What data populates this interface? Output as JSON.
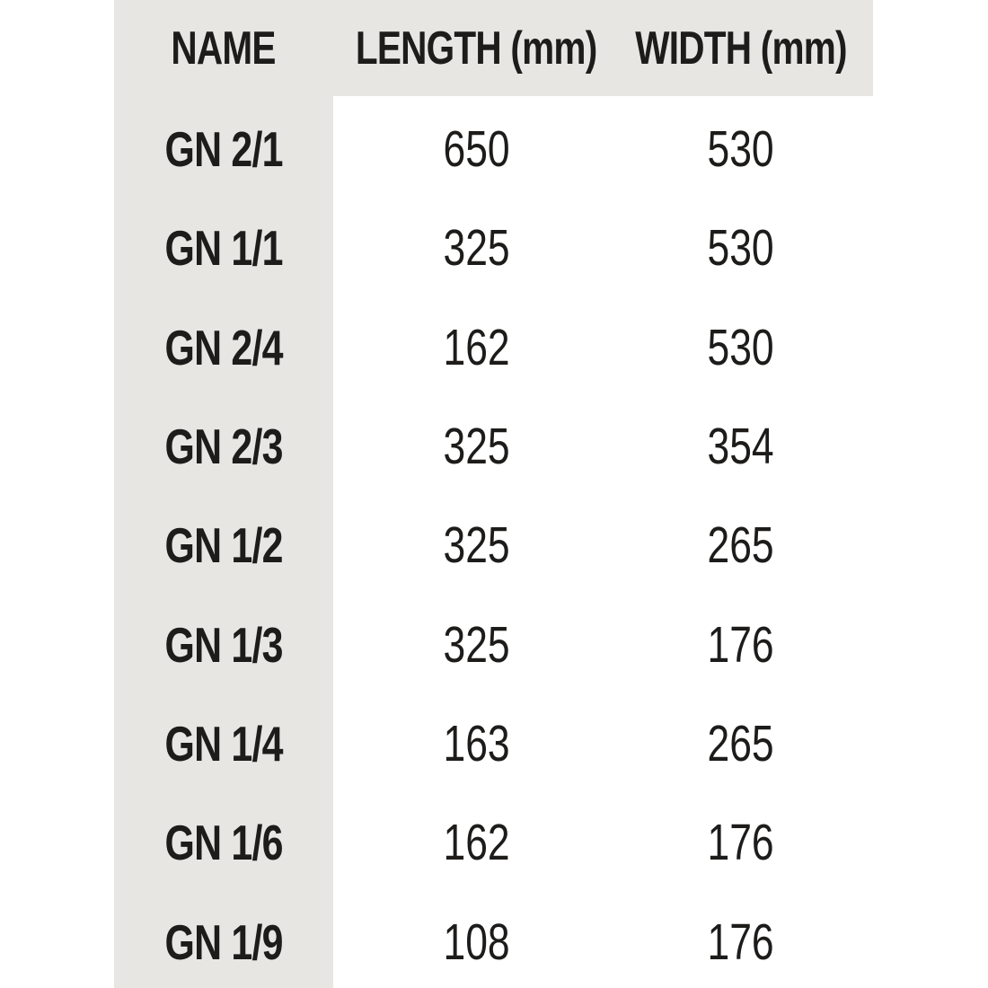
{
  "colors": {
    "band_gray": "#e7e6e3",
    "text": "#1d1c1a",
    "page_bg": "#ffffff"
  },
  "header": {
    "name": "NAME",
    "length": "LENGTH (mm)",
    "width": "WIDTH (mm)"
  },
  "chart_data": {
    "type": "table",
    "title": "",
    "columns": [
      "NAME",
      "LENGTH (mm)",
      "WIDTH (mm)"
    ],
    "rows": [
      {
        "name": "GN 2/1",
        "length": "650",
        "width": "530"
      },
      {
        "name": "GN 1/1",
        "length": "325",
        "width": "530"
      },
      {
        "name": "GN 2/4",
        "length": "162",
        "width": "530"
      },
      {
        "name": "GN 2/3",
        "length": "325",
        "width": "354"
      },
      {
        "name": "GN 1/2",
        "length": "325",
        "width": "265"
      },
      {
        "name": "GN 1/3",
        "length": "325",
        "width": "176"
      },
      {
        "name": "GN 1/4",
        "length": "163",
        "width": "265"
      },
      {
        "name": "GN 1/6",
        "length": "162",
        "width": "176"
      },
      {
        "name": "GN 1/9",
        "length": "108",
        "width": "176"
      }
    ]
  }
}
